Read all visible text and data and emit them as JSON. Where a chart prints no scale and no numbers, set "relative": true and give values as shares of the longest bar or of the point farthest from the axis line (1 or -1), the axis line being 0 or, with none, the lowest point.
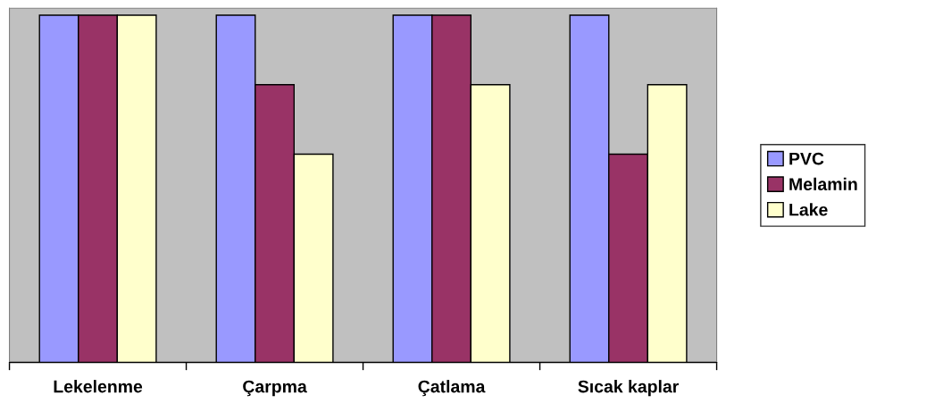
{
  "chart_data": {
    "type": "bar",
    "relative": true,
    "categories": [
      "Lekelenme",
      "Çarpma",
      "Çatlama",
      "Sıcak kaplar"
    ],
    "series": [
      {
        "name": "PVC",
        "color": "#9999ff",
        "values": [
          1,
          1,
          1,
          1
        ]
      },
      {
        "name": "Melamin",
        "color": "#993366",
        "values": [
          1,
          0.8,
          1,
          0.6
        ]
      },
      {
        "name": "Lake",
        "color": "#ffffcc",
        "values": [
          1,
          0.6,
          0.8,
          0.8
        ]
      }
    ],
    "legend": "right",
    "grid": false
  }
}
